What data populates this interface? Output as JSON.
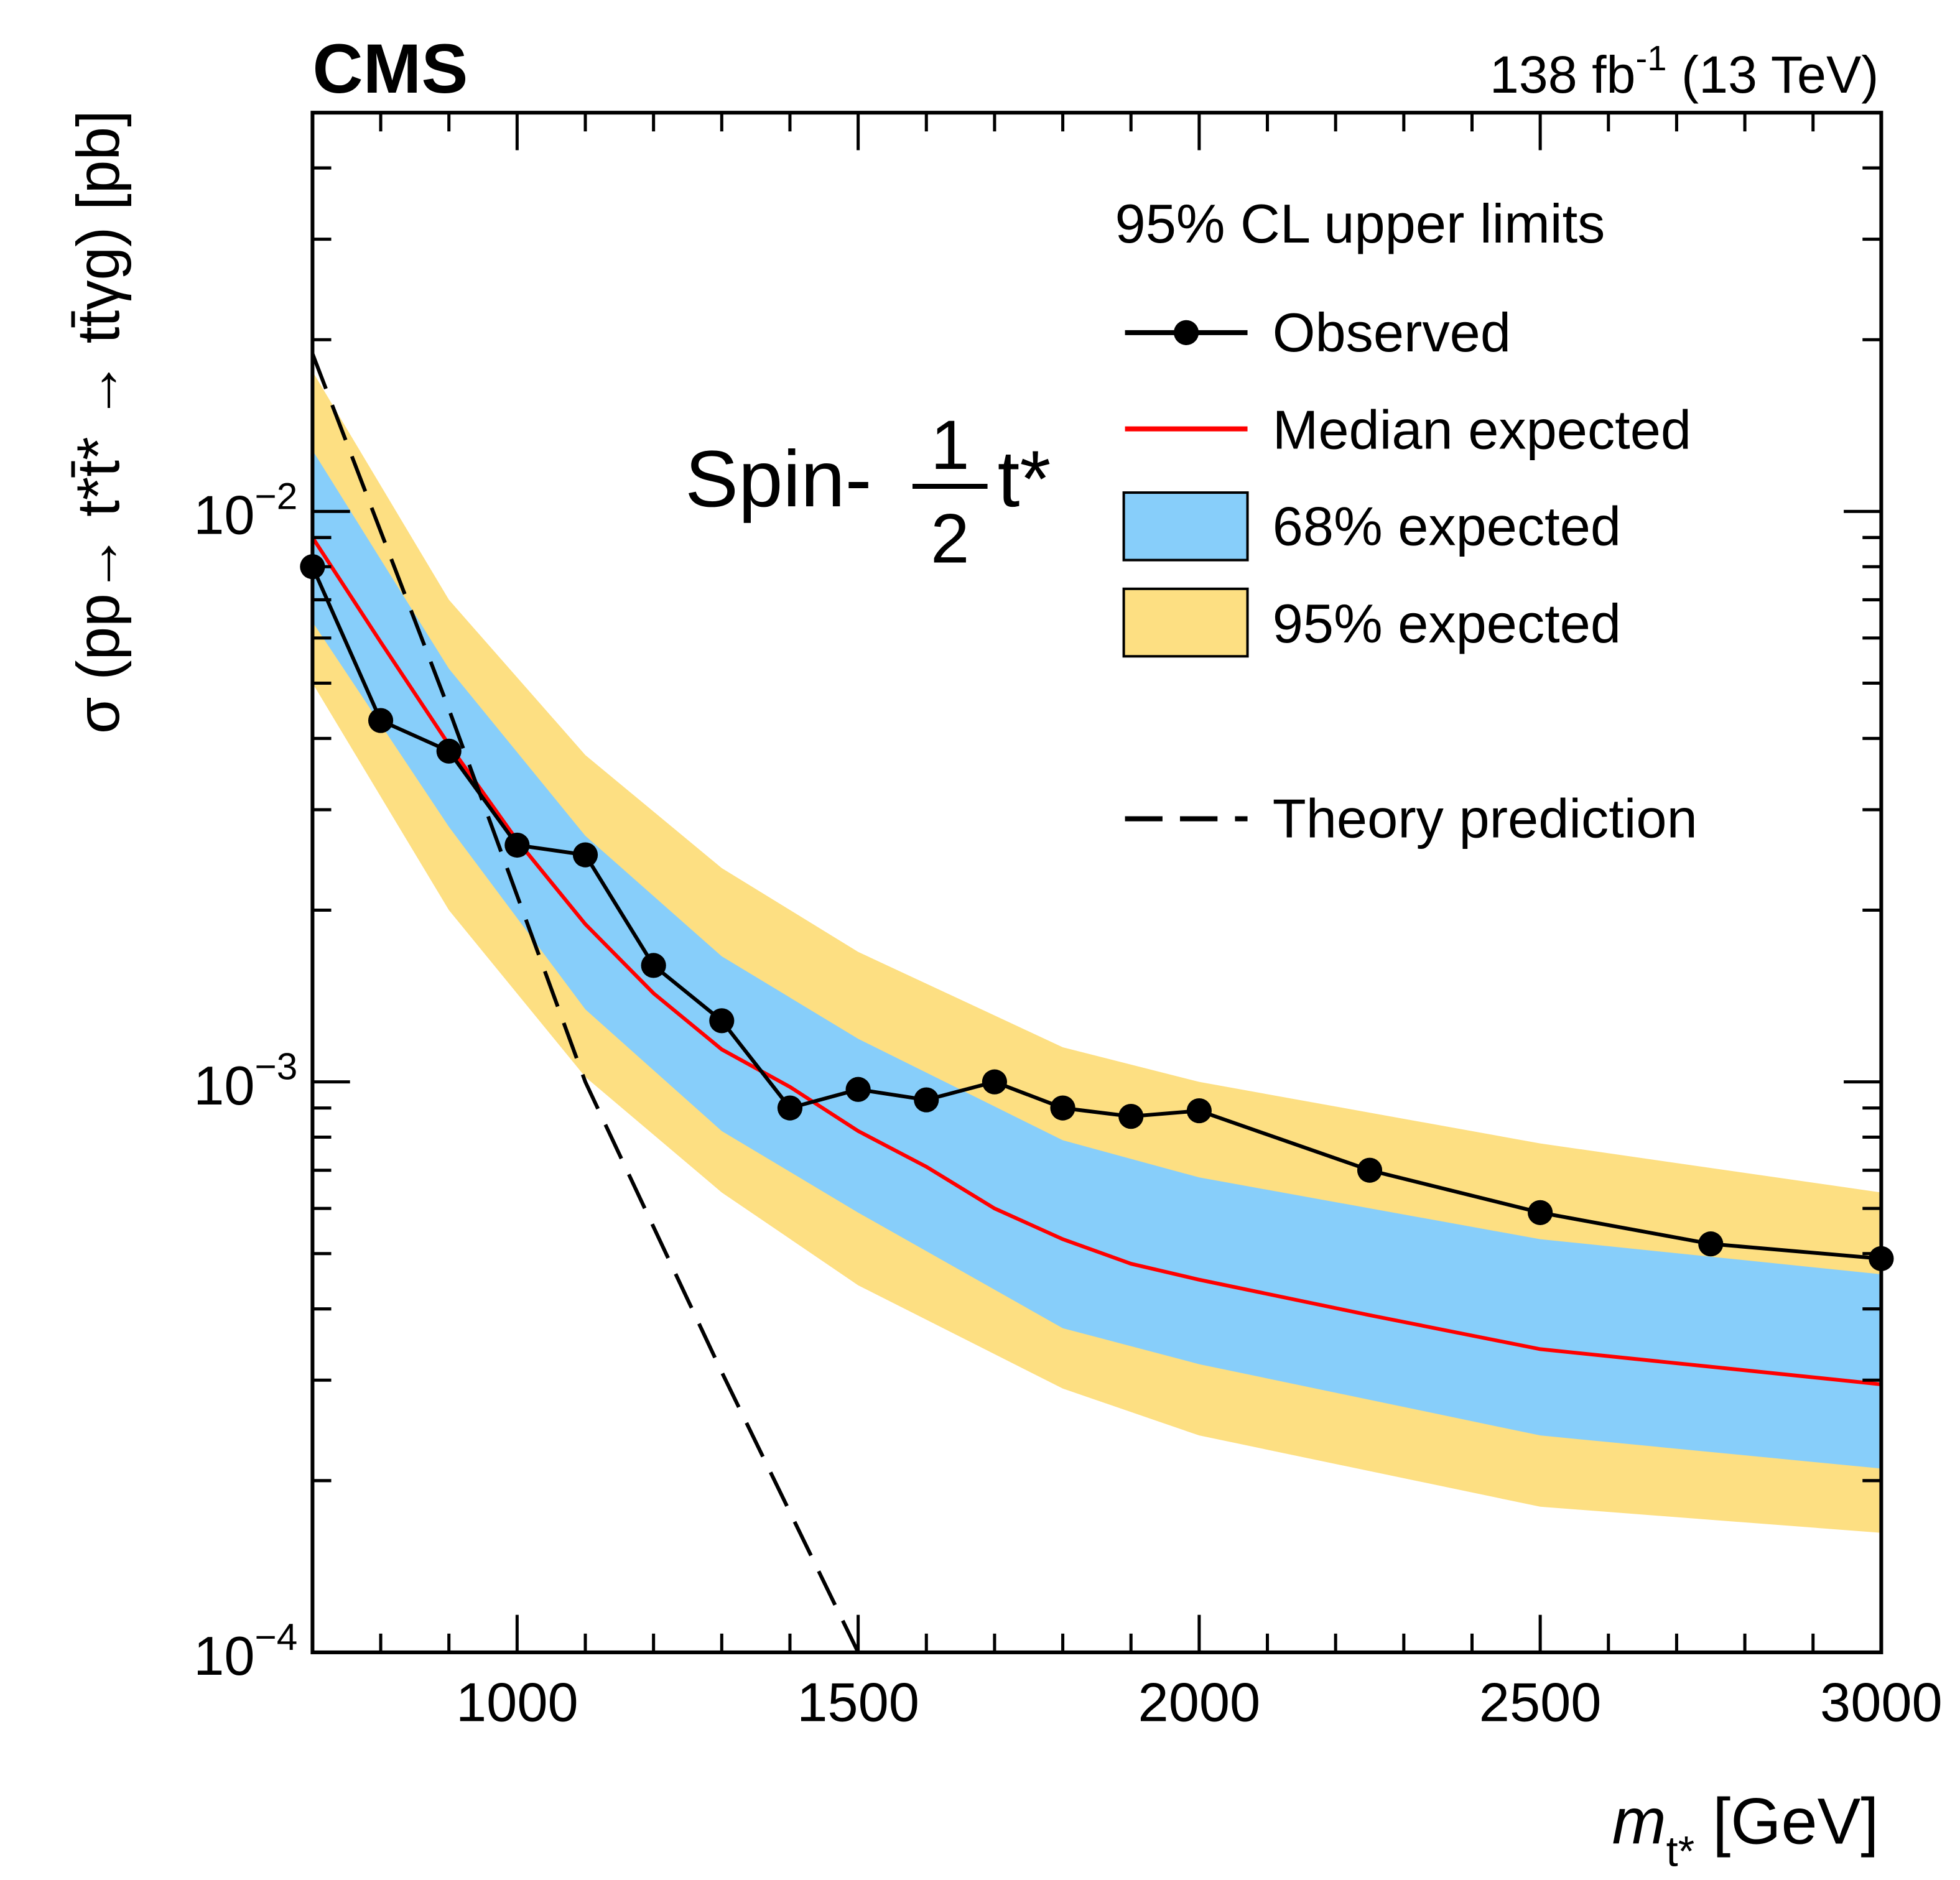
{
  "chart_data": {
    "type": "line",
    "experiment_label": "CMS",
    "lumi_label": "138 fb",
    "lumi_exponent": "-1",
    "energy_label": " (13 TeV)",
    "annotation": {
      "prefix": "Spin-",
      "numerator": "1",
      "denominator": "2",
      "particle": "t*"
    },
    "xlabel": {
      "symbol": "m",
      "subscript": "t*",
      "unit": " [GeV]"
    },
    "ylabel": "σ (pp→ t*t̄* → tt̄γg) [pb]",
    "x_range": [
      700,
      3000
    ],
    "y_range": [
      0.0001,
      0.05
    ],
    "y_scale": "log",
    "x_ticks": [
      1000,
      1500,
      2000,
      2500,
      3000
    ],
    "x_tick_labels": [
      "1000",
      "1500",
      "2000",
      "2500",
      "3000"
    ],
    "y_ticks": [
      0.0001,
      0.001,
      0.01
    ],
    "y_tick_labels": [
      {
        "base": "10",
        "exp": "−4"
      },
      {
        "base": "10",
        "exp": "−3"
      },
      {
        "base": "10",
        "exp": "−2"
      }
    ],
    "grid": false,
    "legend": {
      "title": "95% CL upper limits",
      "placement": "top-right",
      "entries": [
        "Observed",
        "Median expected",
        "68% expected",
        "95% expected",
        "Theory prediction"
      ]
    },
    "colors": {
      "observed": "#000000",
      "expected": "#ff0000",
      "band68": "#87cefa",
      "band95": "#fddf82",
      "theory": "#000000"
    },
    "observed": {
      "x": [
        700,
        800,
        900,
        1000,
        1100,
        1200,
        1300,
        1400,
        1500,
        1600,
        1700,
        1800,
        1900,
        2000,
        2250,
        2500,
        2750,
        3000
      ],
      "y": [
        0.008,
        0.0043,
        0.0038,
        0.0026,
        0.0025,
        0.0016,
        0.00128,
        0.0009,
        0.00097,
        0.00093,
        0.001,
        0.0009,
        0.00087,
        0.00089,
        0.0007,
        0.00059,
        0.00052,
        0.00049
      ]
    },
    "expected": {
      "x": [
        700,
        800,
        900,
        1000,
        1100,
        1200,
        1300,
        1400,
        1500,
        1600,
        1700,
        1800,
        1900,
        2000,
        2250,
        2500,
        3000
      ],
      "median": [
        0.009,
        0.0059,
        0.0039,
        0.00265,
        0.00189,
        0.00143,
        0.00114,
        0.00098,
        0.00082,
        0.00071,
        0.0006,
        0.00053,
        0.00048,
        0.00045,
        0.00039,
        0.00034,
        0.000295
      ]
    },
    "bands": {
      "x": [
        700,
        900,
        1100,
        1300,
        1500,
        1800,
        2000,
        2500,
        3000
      ],
      "band68_low": [
        0.0064,
        0.0028,
        0.00134,
        0.00082,
        0.00059,
        0.00037,
        0.00032,
        0.00024,
        0.00021
      ],
      "band68_high": [
        0.0128,
        0.0053,
        0.0027,
        0.00166,
        0.00119,
        0.00079,
        0.00068,
        0.00053,
        0.00046
      ],
      "band95_low": [
        0.005,
        0.002,
        0.00102,
        0.00064,
        0.00044,
        0.00029,
        0.00024,
        0.00018,
        0.000162
      ],
      "band95_high": [
        0.0176,
        0.007,
        0.00374,
        0.00237,
        0.00169,
        0.00115,
        0.001,
        0.00078,
        0.00064
      ]
    },
    "theory": {
      "x": [
        700,
        900,
        1100,
        1300,
        1500
      ],
      "y": [
        0.0189,
        0.0045,
        0.001,
        0.00031,
        0.0001
      ]
    }
  }
}
